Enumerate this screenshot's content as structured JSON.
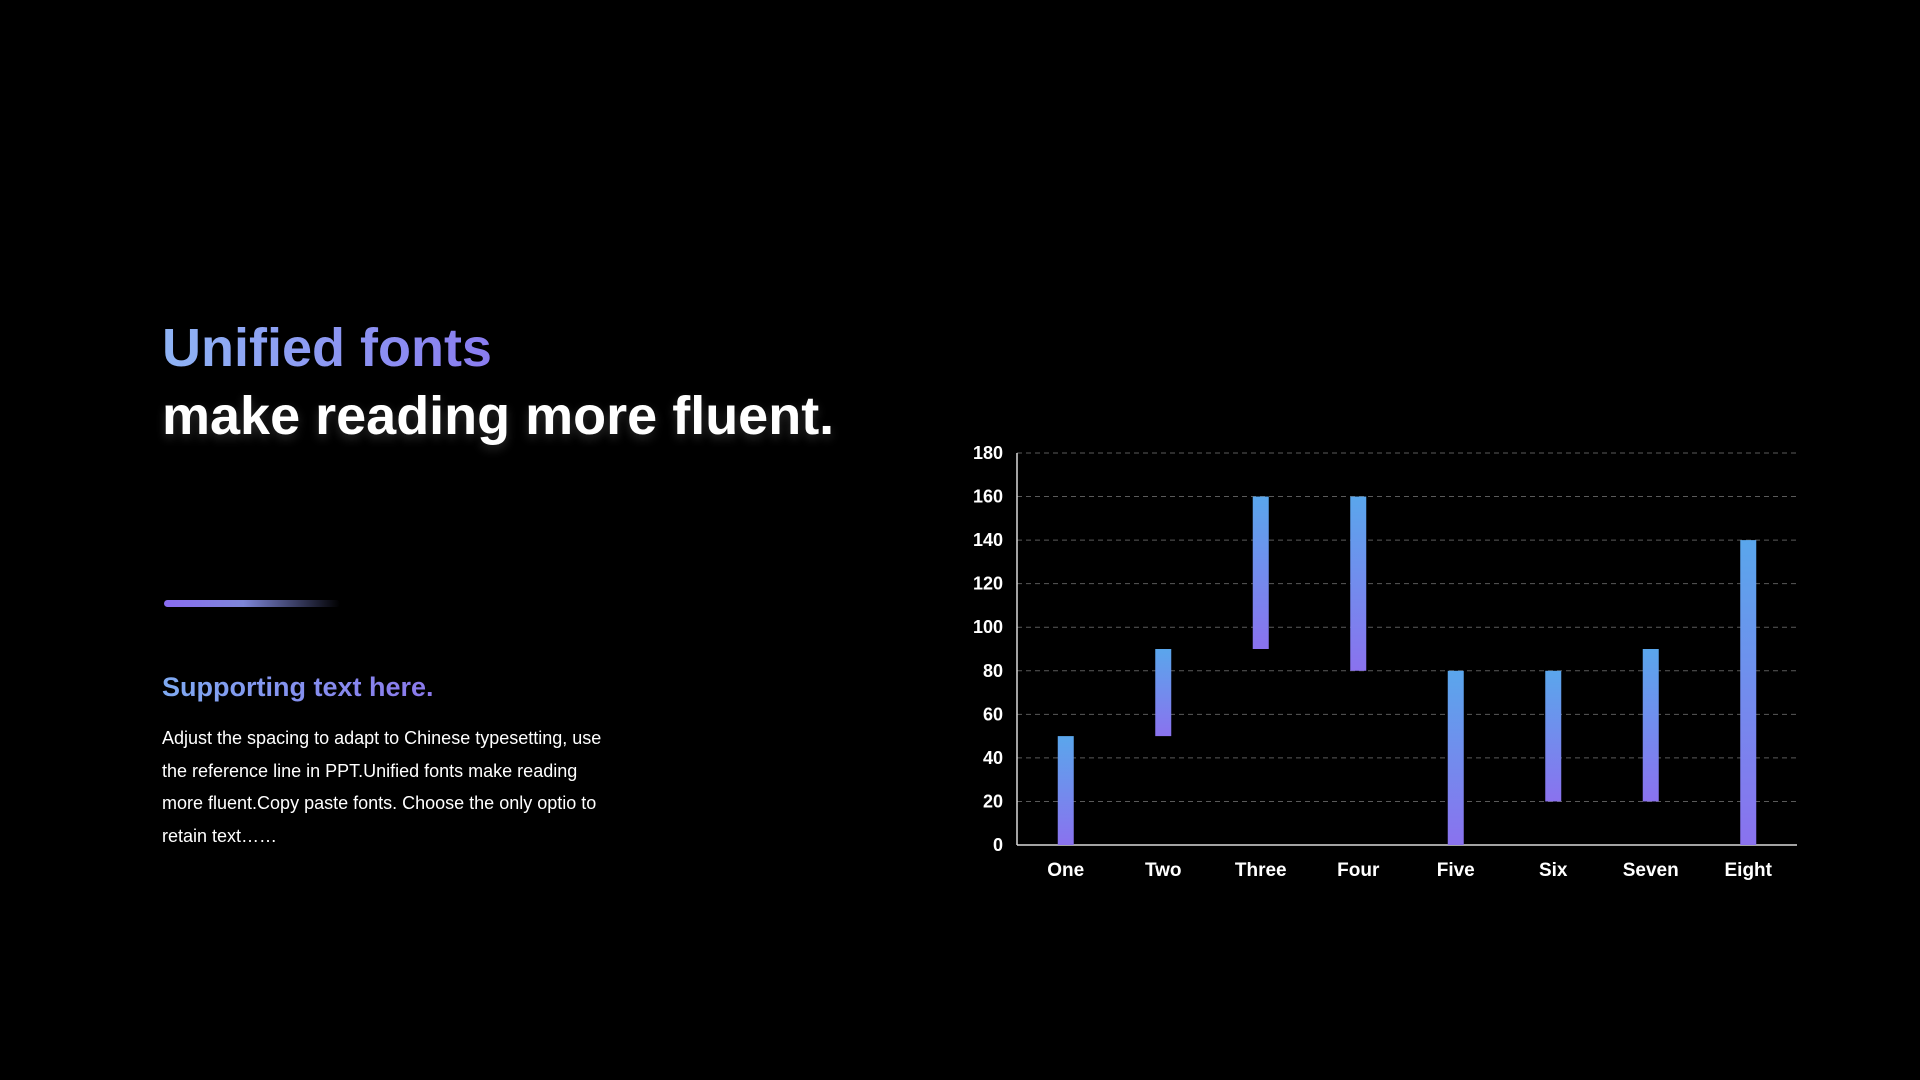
{
  "heading": {
    "accent": "Unified fonts",
    "main": "make reading more fluent."
  },
  "support": {
    "title": "Supporting text here.",
    "body": "Adjust the spacing to adapt to Chinese typesetting, use the reference line in PPT.Unified fonts make reading more fluent.Copy paste fonts. Choose the only optio to retain text……"
  },
  "colors": {
    "background": "#000000",
    "bar_top": "#5aa6ec",
    "bar_bottom": "#8a72ee",
    "accent_start": "#8fb4f5",
    "accent_end": "#8a7cf0"
  },
  "chart_data": {
    "type": "bar",
    "subtype": "floating-range",
    "categories": [
      "One",
      "Two",
      "Three",
      "Four",
      "Five",
      "Six",
      "Seven",
      "Eight"
    ],
    "series": [
      {
        "low": [
          0,
          50,
          90,
          80,
          0,
          20,
          20,
          0
        ],
        "high": [
          50,
          90,
          160,
          160,
          80,
          80,
          90,
          140
        ]
      }
    ],
    "ylim": [
      0,
      180
    ],
    "yticks": [
      0,
      20,
      40,
      60,
      80,
      100,
      120,
      140,
      160,
      180
    ],
    "grid": true,
    "legend": "none"
  }
}
